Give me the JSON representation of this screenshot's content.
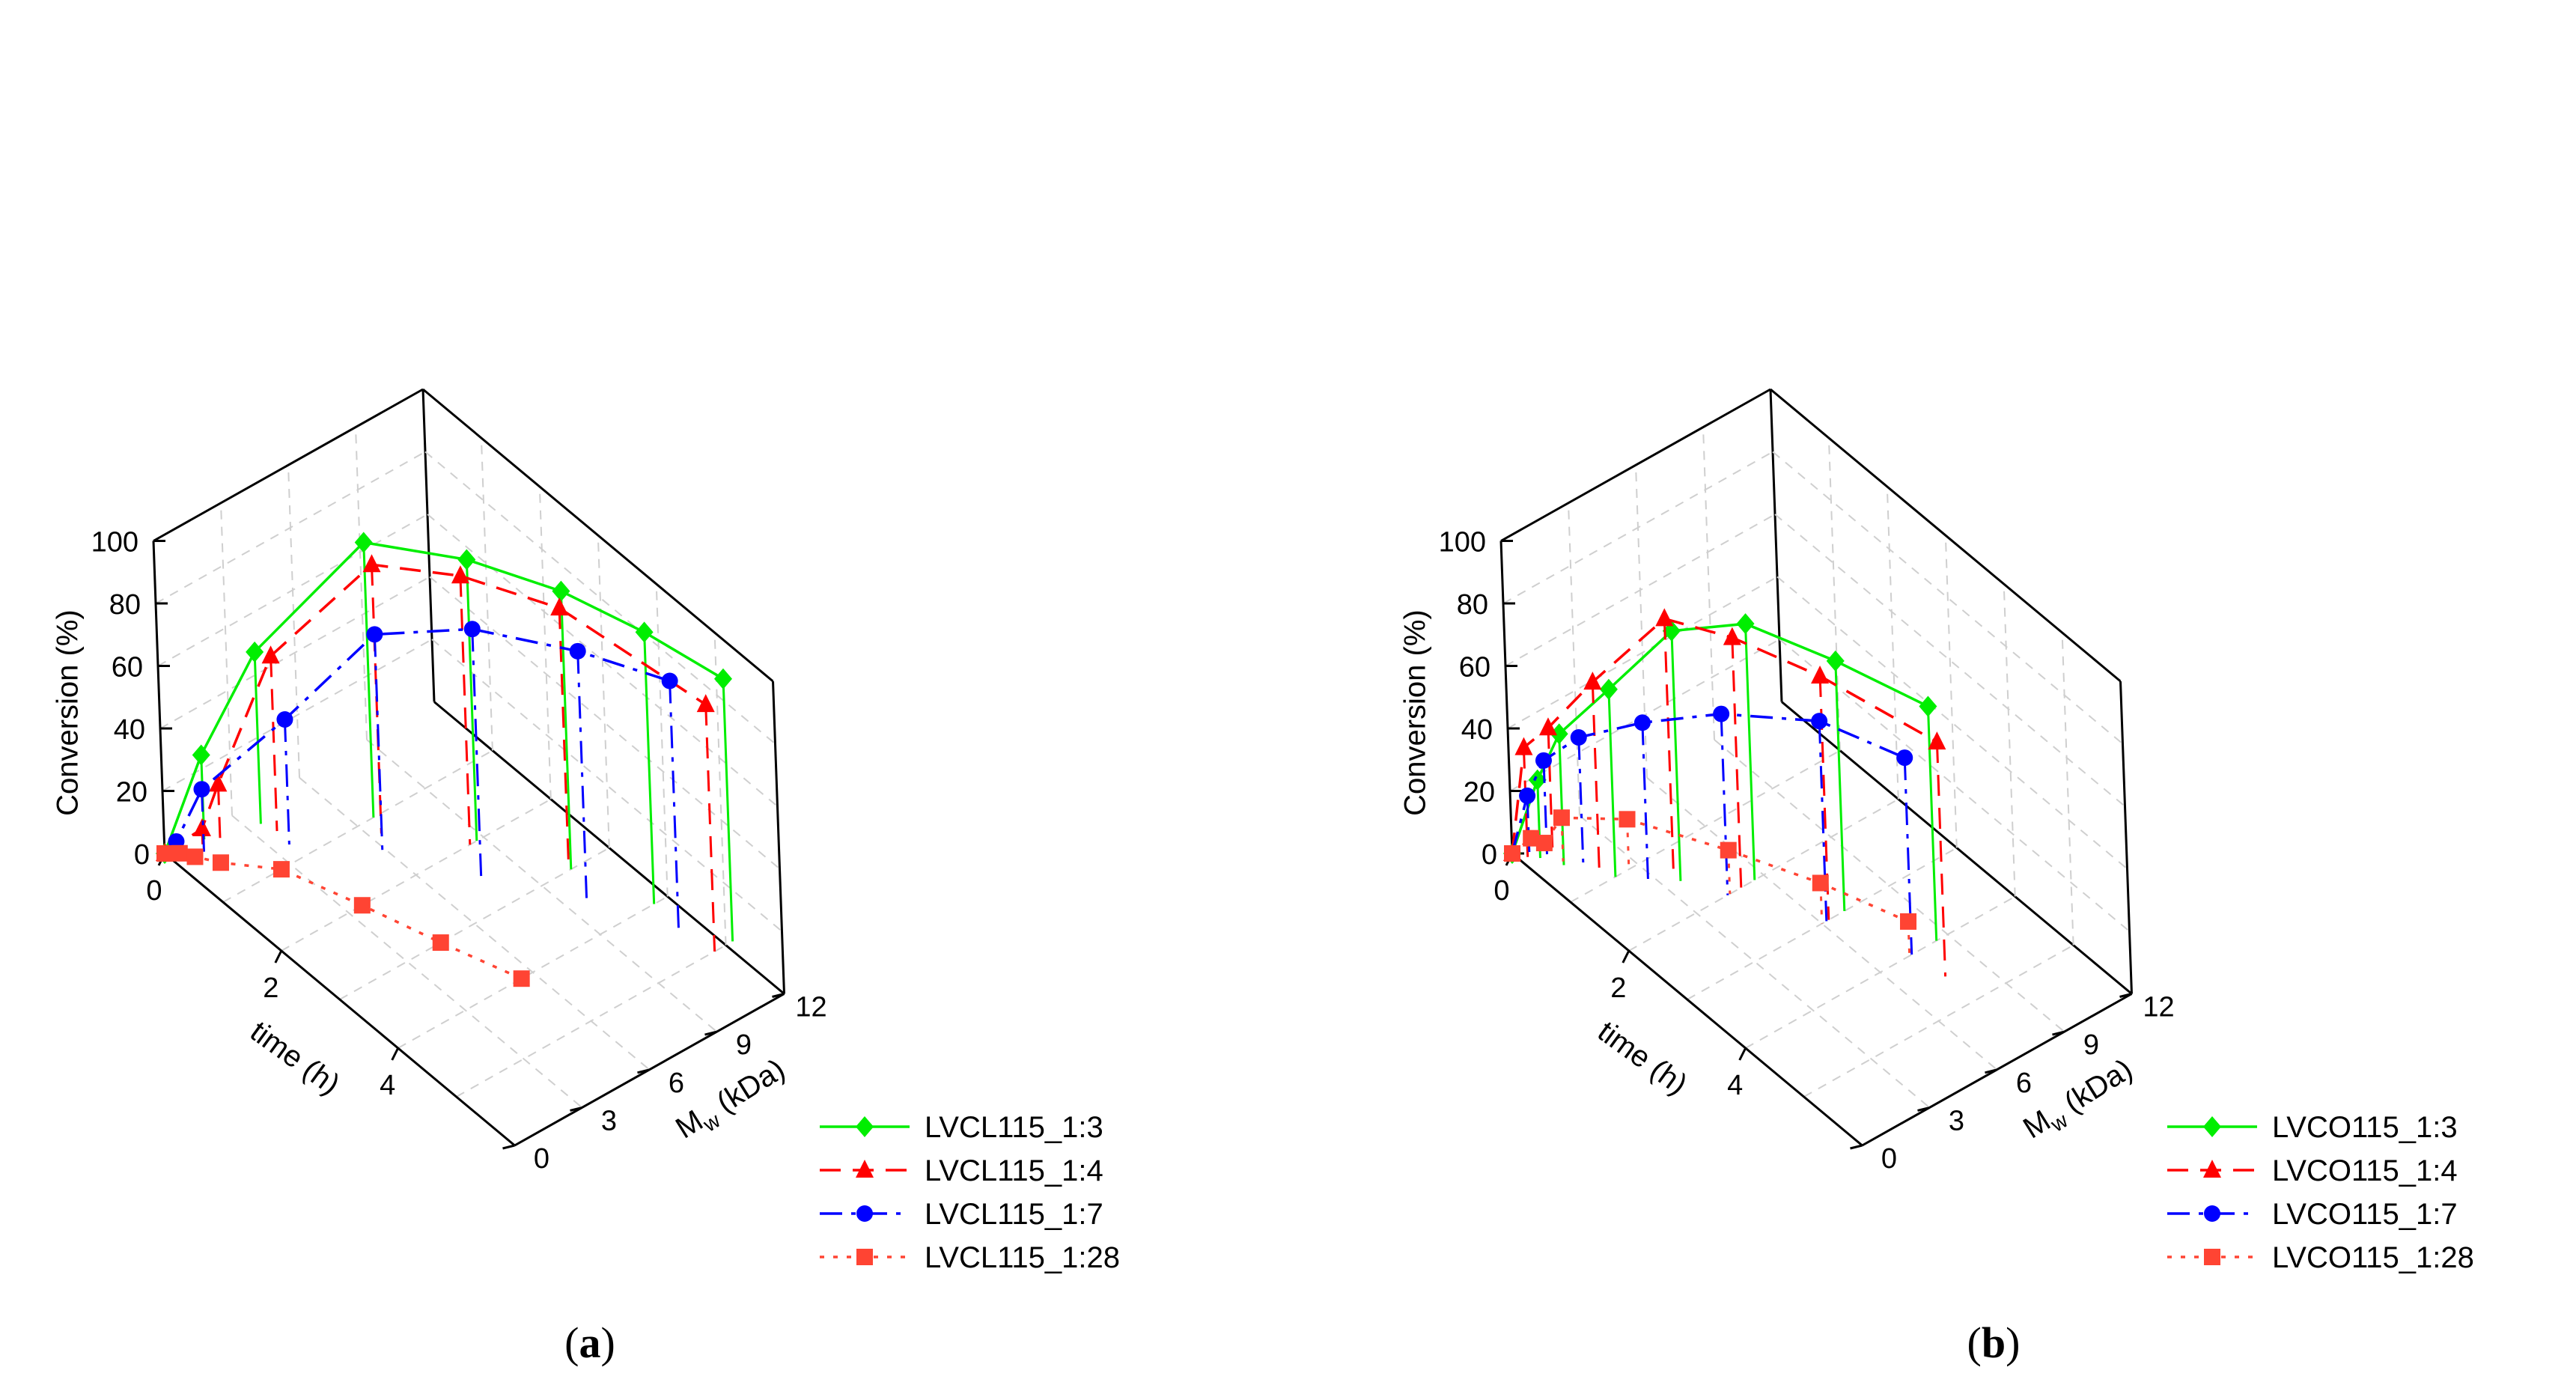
{
  "figure": {
    "captions": [
      {
        "letter": "a",
        "open": "(",
        "close": ")"
      },
      {
        "letter": "b",
        "open": "(",
        "close": ")"
      }
    ]
  },
  "chart_data": [
    {
      "type": "3d-scatter-line",
      "title": "",
      "xlabel": "time (h)",
      "ylabel_main": "M",
      "ylabel_sub": "w",
      "ylabel_unit": " (kDa)",
      "zlabel": "Conversion (%)",
      "xlim": [
        0,
        6
      ],
      "ylim": [
        0,
        12
      ],
      "zlim": [
        0,
        100
      ],
      "xticks": [
        0,
        2,
        4
      ],
      "yticks": [
        0,
        3,
        6,
        9,
        12
      ],
      "zticks": [
        0,
        20,
        40,
        60,
        80,
        100
      ],
      "grid": true,
      "legend_position": "bottom-right",
      "series": [
        {
          "name": "LVCL115_1:3",
          "color": "#00ee00",
          "marker": "diamond",
          "dash": "solid",
          "points": [
            [
              0,
              0,
              0
            ],
            [
              0.1,
              1.5,
              27
            ],
            [
              0.3,
              3.5,
              55
            ],
            [
              1.0,
              6.7,
              88
            ],
            [
              2.0,
              8.7,
              90
            ],
            [
              3.0,
              10.3,
              89
            ],
            [
              4.0,
              11.4,
              87
            ],
            [
              5.0,
              12.3,
              84
            ]
          ]
        },
        {
          "name": "LVCL115_1:4",
          "color": "#ff0000",
          "marker": "triangle",
          "dash": "dash",
          "points": [
            [
              0,
              0,
              0
            ],
            [
              0.15,
              1.3,
              5
            ],
            [
              0.3,
              1.7,
              20
            ],
            [
              0.5,
              3.7,
              56
            ],
            [
              1.25,
              6.4,
              86
            ],
            [
              2.0,
              8.4,
              86
            ],
            [
              3.0,
              10.2,
              84
            ],
            [
              5.0,
              11.5,
              79
            ]
          ]
        },
        {
          "name": "LVCL115_1:7",
          "color": "#0000ff",
          "marker": "circle",
          "dash": "dashdot",
          "points": [
            [
              0,
              0,
              0
            ],
            [
              0.05,
              0.4,
              3
            ],
            [
              0.25,
              1.1,
              20
            ],
            [
              0.75,
              3.6,
              40
            ],
            [
              1.5,
              5.8,
              70
            ],
            [
              2.5,
              7.6,
              80
            ],
            [
              3.5,
              9.7,
              80
            ],
            [
              4.5,
              11.2,
              80
            ]
          ]
        },
        {
          "name": "LVCL115_1:28",
          "color": "#ff4433",
          "marker": "square",
          "dash": "dot",
          "points": [
            [
              0,
              0,
              0
            ],
            [
              0.1,
              0.4,
              0
            ],
            [
              0.25,
              0.7,
              0
            ],
            [
              0.5,
              1.2,
              0
            ],
            [
              1.0,
              2.6,
              0
            ],
            [
              2.0,
              3.6,
              0
            ],
            [
              3.0,
              4.5,
              0
            ],
            [
              4.0,
              5.5,
              0
            ]
          ]
        }
      ]
    },
    {
      "type": "3d-scatter-line",
      "title": "",
      "xlabel": "time (h)",
      "ylabel_main": "M",
      "ylabel_sub": "w",
      "ylabel_unit": " (kDa)",
      "zlabel": "Conversion (%)",
      "xlim": [
        0,
        6
      ],
      "ylim": [
        0,
        12
      ],
      "zlim": [
        0,
        100
      ],
      "xticks": [
        0,
        2,
        4
      ],
      "yticks": [
        0,
        3,
        6,
        9,
        12
      ],
      "zticks": [
        0,
        20,
        40,
        60,
        80,
        100
      ],
      "grid": true,
      "legend_position": "bottom-right",
      "series": [
        {
          "name": "LVCO115_1:3",
          "color": "#00ee00",
          "marker": "diamond",
          "dash": "solid",
          "points": [
            [
              0,
              0,
              0
            ],
            [
              0.25,
              0.6,
              25
            ],
            [
              0.5,
              1.0,
              42
            ],
            [
              1.0,
              2.0,
              60
            ],
            [
              1.5,
              3.6,
              80
            ],
            [
              2.0,
              5.6,
              82
            ],
            [
              3.0,
              7.0,
              80
            ],
            [
              4.0,
              8.5,
              75
            ]
          ]
        },
        {
          "name": "LVCO115_1:4",
          "color": "#ff0000",
          "marker": "triangle",
          "dash": "dash",
          "points": [
            [
              0,
              0,
              0
            ],
            [
              0.15,
              0.3,
              35
            ],
            [
              0.35,
              0.9,
              42
            ],
            [
              0.8,
              1.8,
              60
            ],
            [
              1.3,
              3.8,
              80
            ],
            [
              2.0,
              5.0,
              80
            ],
            [
              3.0,
              6.3,
              78
            ],
            [
              4.5,
              7.6,
              75
            ]
          ]
        },
        {
          "name": "LVCO115_1:7",
          "color": "#0000ff",
          "marker": "circle",
          "dash": "dashdot",
          "points": [
            [
              0,
              0,
              0
            ],
            [
              0.1,
              0.5,
              18
            ],
            [
              0.25,
              0.9,
              30
            ],
            [
              0.6,
              1.6,
              40
            ],
            [
              1.25,
              2.8,
              50
            ],
            [
              2.0,
              4.4,
              58
            ],
            [
              3.0,
              6.2,
              64
            ],
            [
              4.0,
              7.4,
              63
            ]
          ]
        },
        {
          "name": "LVCO115_1:28",
          "color": "#ff4433",
          "marker": "square",
          "dash": "dot",
          "points": [
            [
              0,
              0,
              0
            ],
            [
              0.1,
              0.6,
              4
            ],
            [
              0.25,
              0.8,
              4
            ],
            [
              0.45,
              1.1,
              14
            ],
            [
              1.0,
              2.6,
              16
            ],
            [
              2.0,
              4.5,
              14
            ],
            [
              3.0,
              6.0,
              13
            ],
            [
              4.0,
              7.3,
              11
            ]
          ]
        }
      ]
    }
  ]
}
